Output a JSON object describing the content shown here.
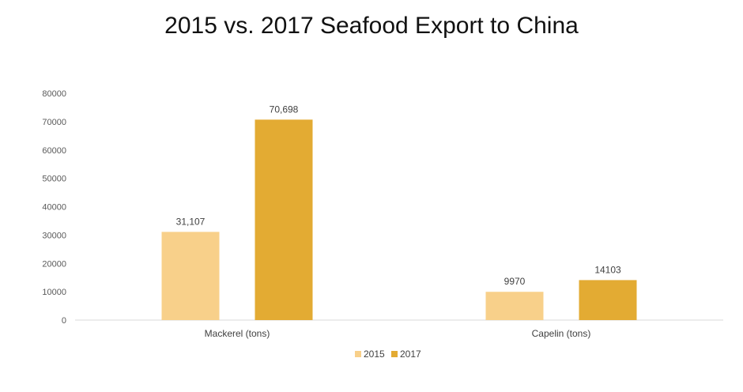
{
  "chart_data": {
    "type": "bar",
    "title": "2015 vs. 2017 Seafood Export to China",
    "xlabel": "",
    "ylabel": "",
    "categories": [
      "Mackerel (tons)",
      "Capelin (tons)"
    ],
    "series": [
      {
        "name": "2015",
        "values": [
          31107,
          9970
        ],
        "labels": [
          "31,107",
          "9970"
        ],
        "color": "#f8d08a"
      },
      {
        "name": "2017",
        "values": [
          70698,
          14103
        ],
        "labels": [
          "70,698",
          "14103"
        ],
        "color": "#e3ab33"
      }
    ],
    "ylim": [
      0,
      80000
    ],
    "yticks": [
      "0",
      "10000",
      "20000",
      "30000",
      "40000",
      "50000",
      "60000",
      "70000",
      "80000"
    ],
    "grid": false,
    "legend": "bottom"
  }
}
